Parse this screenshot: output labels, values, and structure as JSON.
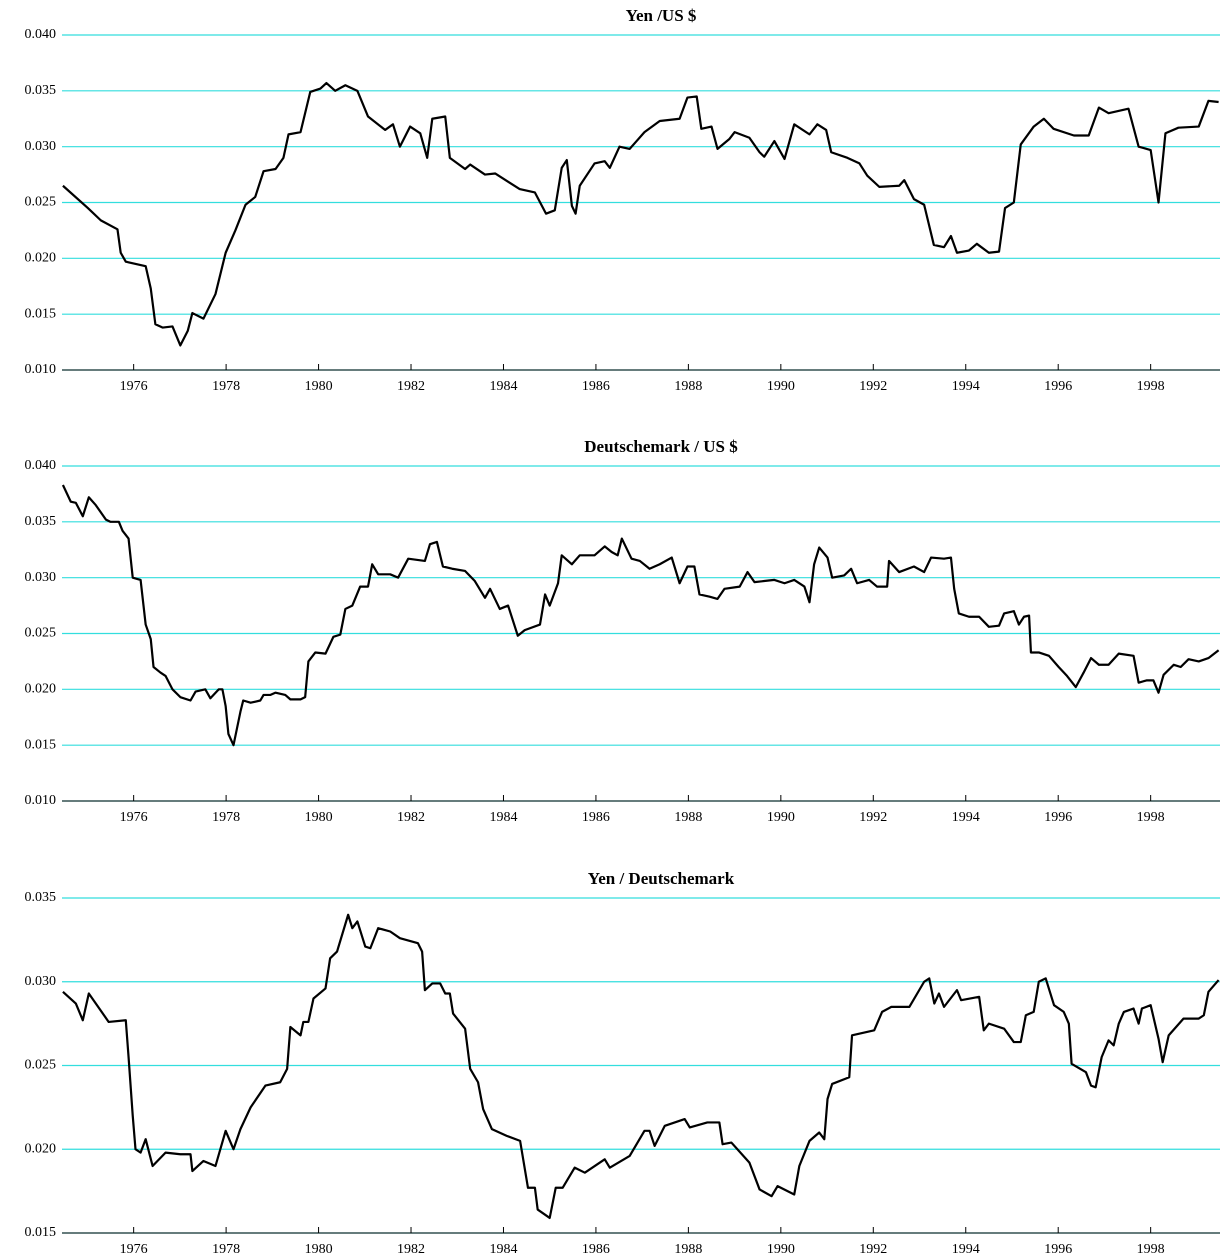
{
  "chart_data": [
    {
      "type": "line",
      "title": "Yen /US $",
      "color": "#000000",
      "grid": true,
      "grid_color": "#33dede",
      "xlim": [
        1974.45,
        1999.5
      ],
      "xticks": [
        1976,
        1978,
        1980,
        1982,
        1984,
        1986,
        1988,
        1990,
        1992,
        1994,
        1996,
        1998
      ],
      "ylim": [
        0.01,
        0.04
      ],
      "yticks": [
        {
          "value": 0.01,
          "label": "0.010"
        },
        {
          "value": 0.015,
          "label": "0.015"
        },
        {
          "value": 0.02,
          "label": "0.020"
        },
        {
          "value": 0.025,
          "label": "0.025"
        },
        {
          "value": 0.03,
          "label": "0.030"
        },
        {
          "value": 0.035,
          "label": "0.035"
        },
        {
          "value": 0.04,
          "label": "0.040"
        }
      ],
      "x": [
        1974.47,
        1975.01,
        1975.29,
        1975.65,
        1975.72,
        1975.83,
        1976.26,
        1976.37,
        1976.47,
        1976.63,
        1976.84,
        1977.01,
        1977.17,
        1977.27,
        1977.51,
        1977.77,
        1977.99,
        1978.2,
        1978.42,
        1978.63,
        1978.81,
        1979.07,
        1979.24,
        1979.35,
        1979.61,
        1979.82,
        1980.04,
        1980.17,
        1980.36,
        1980.58,
        1980.84,
        1981.07,
        1981.44,
        1981.61,
        1981.76,
        1981.98,
        1982.2,
        1982.35,
        1982.46,
        1982.74,
        1982.84,
        1983.17,
        1983.28,
        1983.6,
        1983.82,
        1984.35,
        1984.68,
        1984.92,
        1985.11,
        1985.26,
        1985.37,
        1985.48,
        1985.56,
        1985.65,
        1985.97,
        1986.19,
        1986.3,
        1986.51,
        1986.73,
        1987.05,
        1987.38,
        1987.81,
        1987.98,
        1988.18,
        1988.28,
        1988.5,
        1988.63,
        1988.89,
        1989.0,
        1989.32,
        1989.54,
        1989.64,
        1989.86,
        1990.08,
        1990.29,
        1990.62,
        1990.79,
        1990.98,
        1991.09,
        1991.44,
        1991.7,
        1991.87,
        1992.13,
        1992.56,
        1992.67,
        1992.88,
        1993.1,
        1993.31,
        1993.53,
        1993.68,
        1993.81,
        1994.07,
        1994.24,
        1994.5,
        1994.72,
        1994.85,
        1995.04,
        1995.19,
        1995.47,
        1995.69,
        1995.9,
        1996.34,
        1996.66,
        1996.88,
        1997.09,
        1997.52,
        1997.74,
        1998.0,
        1998.17,
        1998.32,
        1998.6,
        1999.04,
        1999.25,
        1999.47
      ],
      "values": [
        0.0265,
        0.0245,
        0.0234,
        0.0226,
        0.0205,
        0.0197,
        0.0193,
        0.0173,
        0.0141,
        0.0138,
        0.0139,
        0.0122,
        0.0135,
        0.0151,
        0.0146,
        0.0168,
        0.0205,
        0.0225,
        0.0248,
        0.0255,
        0.0278,
        0.028,
        0.029,
        0.0311,
        0.0313,
        0.0349,
        0.0352,
        0.0357,
        0.035,
        0.0355,
        0.035,
        0.0327,
        0.0315,
        0.032,
        0.03,
        0.0318,
        0.0312,
        0.029,
        0.0325,
        0.0327,
        0.029,
        0.028,
        0.0284,
        0.0275,
        0.0276,
        0.0262,
        0.0259,
        0.024,
        0.0243,
        0.0281,
        0.0288,
        0.0247,
        0.024,
        0.0265,
        0.0285,
        0.0287,
        0.0281,
        0.03,
        0.0298,
        0.0313,
        0.0323,
        0.0325,
        0.0344,
        0.0345,
        0.0316,
        0.0318,
        0.0298,
        0.0307,
        0.0313,
        0.0308,
        0.0295,
        0.0291,
        0.0305,
        0.0289,
        0.032,
        0.0311,
        0.032,
        0.0315,
        0.0295,
        0.029,
        0.0285,
        0.0274,
        0.0264,
        0.0265,
        0.027,
        0.0253,
        0.0248,
        0.0212,
        0.021,
        0.022,
        0.0205,
        0.0207,
        0.0213,
        0.0205,
        0.0206,
        0.0245,
        0.025,
        0.0302,
        0.0318,
        0.0325,
        0.0316,
        0.031,
        0.031,
        0.0335,
        0.033,
        0.0334,
        0.03,
        0.0297,
        0.025,
        0.0312,
        0.0317,
        0.0318,
        0.0341,
        0.034
      ]
    },
    {
      "type": "line",
      "title": "Deutschemark / US $",
      "color": "#000000",
      "grid": true,
      "grid_color": "#33dede",
      "xlim": [
        1974.45,
        1999.5
      ],
      "xticks": [
        1976,
        1978,
        1980,
        1982,
        1984,
        1986,
        1988,
        1990,
        1992,
        1994,
        1996,
        1998
      ],
      "ylim": [
        0.01,
        0.04
      ],
      "yticks": [
        {
          "value": 0.01,
          "label": "0.010"
        },
        {
          "value": 0.015,
          "label": "0.015"
        },
        {
          "value": 0.02,
          "label": "0.020"
        },
        {
          "value": 0.025,
          "label": "0.025"
        },
        {
          "value": 0.03,
          "label": "0.030"
        },
        {
          "value": 0.035,
          "label": "0.035"
        },
        {
          "value": 0.04,
          "label": "0.040"
        }
      ],
      "x": [
        1974.47,
        1974.64,
        1974.75,
        1974.9,
        1975.03,
        1975.18,
        1975.4,
        1975.5,
        1975.68,
        1975.76,
        1975.89,
        1975.98,
        1976.15,
        1976.26,
        1976.37,
        1976.43,
        1976.58,
        1976.69,
        1976.84,
        1977.01,
        1977.23,
        1977.34,
        1977.55,
        1977.66,
        1977.84,
        1977.92,
        1977.99,
        1978.05,
        1978.16,
        1978.31,
        1978.37,
        1978.53,
        1978.74,
        1978.81,
        1978.96,
        1979.07,
        1979.28,
        1979.39,
        1979.61,
        1979.71,
        1979.78,
        1979.93,
        1980.15,
        1980.32,
        1980.47,
        1980.58,
        1980.73,
        1980.9,
        1981.07,
        1981.16,
        1981.29,
        1981.55,
        1981.72,
        1981.94,
        1982.3,
        1982.41,
        1982.56,
        1982.69,
        1982.89,
        1983.17,
        1983.38,
        1983.6,
        1983.71,
        1983.92,
        1984.1,
        1984.31,
        1984.46,
        1984.79,
        1984.9,
        1985.0,
        1985.18,
        1985.26,
        1985.48,
        1985.65,
        1985.97,
        1986.19,
        1986.34,
        1986.47,
        1986.56,
        1986.77,
        1986.95,
        1987.16,
        1987.38,
        1987.64,
        1987.81,
        1987.98,
        1988.13,
        1988.24,
        1988.46,
        1988.63,
        1988.78,
        1989.11,
        1989.28,
        1989.43,
        1989.86,
        1990.08,
        1990.29,
        1990.51,
        1990.62,
        1990.72,
        1990.83,
        1991.01,
        1991.11,
        1991.37,
        1991.52,
        1991.65,
        1991.91,
        1992.08,
        1992.3,
        1992.34,
        1992.56,
        1992.88,
        1993.1,
        1993.25,
        1993.53,
        1993.68,
        1993.75,
        1993.85,
        1994.07,
        1994.29,
        1994.5,
        1994.72,
        1994.83,
        1995.04,
        1995.15,
        1995.26,
        1995.37,
        1995.41,
        1995.58,
        1995.8,
        1996.01,
        1996.19,
        1996.38,
        1996.55,
        1996.71,
        1996.88,
        1997.09,
        1997.31,
        1997.63,
        1997.74,
        1997.91,
        1998.06,
        1998.17,
        1998.28,
        1998.5,
        1998.65,
        1998.82,
        1999.04,
        1999.25,
        1999.47
      ],
      "values": [
        0.0383,
        0.0368,
        0.0367,
        0.0355,
        0.0372,
        0.0365,
        0.0352,
        0.035,
        0.035,
        0.0342,
        0.0335,
        0.03,
        0.0298,
        0.0258,
        0.0245,
        0.022,
        0.0215,
        0.0212,
        0.02,
        0.0193,
        0.019,
        0.0198,
        0.02,
        0.0192,
        0.02,
        0.02,
        0.0185,
        0.016,
        0.015,
        0.018,
        0.019,
        0.0188,
        0.019,
        0.0195,
        0.0195,
        0.0197,
        0.0195,
        0.0191,
        0.0191,
        0.0193,
        0.0225,
        0.0233,
        0.0232,
        0.0247,
        0.0249,
        0.0272,
        0.0275,
        0.0292,
        0.0292,
        0.0312,
        0.0303,
        0.0303,
        0.03,
        0.0317,
        0.0315,
        0.033,
        0.0332,
        0.031,
        0.0308,
        0.0306,
        0.0297,
        0.0282,
        0.029,
        0.0272,
        0.0275,
        0.0248,
        0.0253,
        0.0258,
        0.0285,
        0.0275,
        0.0295,
        0.032,
        0.0312,
        0.032,
        0.032,
        0.0328,
        0.0323,
        0.032,
        0.0335,
        0.0317,
        0.0315,
        0.0308,
        0.0312,
        0.0318,
        0.0295,
        0.031,
        0.031,
        0.0285,
        0.0283,
        0.0281,
        0.029,
        0.0292,
        0.0305,
        0.0296,
        0.0298,
        0.0295,
        0.0298,
        0.0292,
        0.0278,
        0.0312,
        0.0327,
        0.0318,
        0.03,
        0.0302,
        0.0308,
        0.0295,
        0.0298,
        0.0292,
        0.0292,
        0.0315,
        0.0305,
        0.031,
        0.0305,
        0.0318,
        0.0317,
        0.0318,
        0.029,
        0.0268,
        0.0265,
        0.0265,
        0.0256,
        0.0257,
        0.0268,
        0.027,
        0.0258,
        0.0265,
        0.0266,
        0.0233,
        0.0233,
        0.023,
        0.022,
        0.0212,
        0.0202,
        0.0215,
        0.0228,
        0.0222,
        0.0222,
        0.0232,
        0.023,
        0.0206,
        0.0208,
        0.0208,
        0.0197,
        0.0213,
        0.0222,
        0.022,
        0.0227,
        0.0225,
        0.0228,
        0.0235
      ]
    },
    {
      "type": "line",
      "title": "Yen / Deutschemark",
      "color": "#000000",
      "grid": true,
      "grid_color": "#33dede",
      "xlim": [
        1974.45,
        1999.5
      ],
      "xticks": [
        1976,
        1978,
        1980,
        1982,
        1984,
        1986,
        1988,
        1990,
        1992,
        1994,
        1996,
        1998
      ],
      "ylim": [
        0.015,
        0.035
      ],
      "yticks": [
        {
          "value": 0.015,
          "label": "0.015"
        },
        {
          "value": 0.02,
          "label": "0.020"
        },
        {
          "value": 0.025,
          "label": "0.025"
        },
        {
          "value": 0.03,
          "label": "0.030"
        },
        {
          "value": 0.035,
          "label": "0.035"
        }
      ],
      "x": [
        1974.47,
        1974.75,
        1974.9,
        1975.03,
        1975.46,
        1975.83,
        1975.89,
        1975.98,
        1976.04,
        1976.15,
        1976.26,
        1976.41,
        1976.69,
        1977.01,
        1977.23,
        1977.27,
        1977.51,
        1977.77,
        1977.99,
        1978.16,
        1978.31,
        1978.53,
        1978.85,
        1979.17,
        1979.32,
        1979.39,
        1979.61,
        1979.67,
        1979.78,
        1979.89,
        1980.15,
        1980.25,
        1980.4,
        1980.64,
        1980.73,
        1980.84,
        1981.01,
        1981.12,
        1981.29,
        1981.55,
        1981.76,
        1982.15,
        1982.24,
        1982.3,
        1982.46,
        1982.63,
        1982.74,
        1982.84,
        1982.91,
        1983.17,
        1983.28,
        1983.45,
        1983.56,
        1983.75,
        1984.07,
        1984.36,
        1984.53,
        1984.68,
        1984.74,
        1985.0,
        1985.13,
        1985.28,
        1985.54,
        1985.76,
        1986.19,
        1986.3,
        1986.73,
        1987.05,
        1987.16,
        1987.27,
        1987.49,
        1987.92,
        1988.03,
        1988.41,
        1988.67,
        1988.74,
        1988.93,
        1989.32,
        1989.54,
        1989.8,
        1989.93,
        1990.29,
        1990.4,
        1990.62,
        1990.83,
        1990.94,
        1991.01,
        1991.11,
        1991.48,
        1991.54,
        1992.02,
        1992.19,
        1992.39,
        1992.78,
        1993.1,
        1993.21,
        1993.32,
        1993.42,
        1993.53,
        1993.81,
        1993.9,
        1994.29,
        1994.39,
        1994.5,
        1994.83,
        1995.04,
        1995.19,
        1995.3,
        1995.47,
        1995.58,
        1995.73,
        1995.91,
        1996.12,
        1996.23,
        1996.29,
        1996.6,
        1996.71,
        1996.81,
        1996.94,
        1997.09,
        1997.2,
        1997.31,
        1997.42,
        1997.63,
        1997.74,
        1997.81,
        1998.0,
        1998.17,
        1998.26,
        1998.39,
        1998.71,
        1999.04,
        1999.15,
        1999.25,
        1999.47
      ],
      "values": [
        0.0294,
        0.0287,
        0.0277,
        0.0293,
        0.0276,
        0.0277,
        0.0255,
        0.022,
        0.02,
        0.0198,
        0.0206,
        0.019,
        0.0198,
        0.0197,
        0.0197,
        0.0187,
        0.0193,
        0.019,
        0.0211,
        0.02,
        0.0212,
        0.0225,
        0.0238,
        0.024,
        0.0248,
        0.0273,
        0.0268,
        0.0276,
        0.0276,
        0.029,
        0.0296,
        0.0314,
        0.0318,
        0.034,
        0.0332,
        0.0336,
        0.0321,
        0.032,
        0.0332,
        0.033,
        0.0326,
        0.0323,
        0.0318,
        0.0295,
        0.0299,
        0.0299,
        0.0293,
        0.0293,
        0.0281,
        0.0272,
        0.0248,
        0.024,
        0.0224,
        0.0212,
        0.0208,
        0.0205,
        0.0177,
        0.0177,
        0.0164,
        0.0159,
        0.0177,
        0.0177,
        0.0189,
        0.0186,
        0.0194,
        0.0189,
        0.0196,
        0.0211,
        0.0211,
        0.0202,
        0.0214,
        0.0218,
        0.0213,
        0.0216,
        0.0216,
        0.0203,
        0.0204,
        0.0192,
        0.0176,
        0.0172,
        0.0178,
        0.0173,
        0.019,
        0.0205,
        0.021,
        0.0206,
        0.023,
        0.0239,
        0.0243,
        0.0268,
        0.0271,
        0.0282,
        0.0285,
        0.0285,
        0.03,
        0.0302,
        0.0287,
        0.0293,
        0.0285,
        0.0295,
        0.0289,
        0.0291,
        0.0271,
        0.0275,
        0.0272,
        0.0264,
        0.0264,
        0.028,
        0.0282,
        0.03,
        0.0302,
        0.0286,
        0.0282,
        0.0275,
        0.0251,
        0.0246,
        0.0238,
        0.0237,
        0.0255,
        0.0265,
        0.0262,
        0.0275,
        0.0282,
        0.0284,
        0.0275,
        0.0284,
        0.0286,
        0.0266,
        0.0252,
        0.0268,
        0.0278,
        0.0278,
        0.028,
        0.0294,
        0.0301
      ]
    }
  ]
}
